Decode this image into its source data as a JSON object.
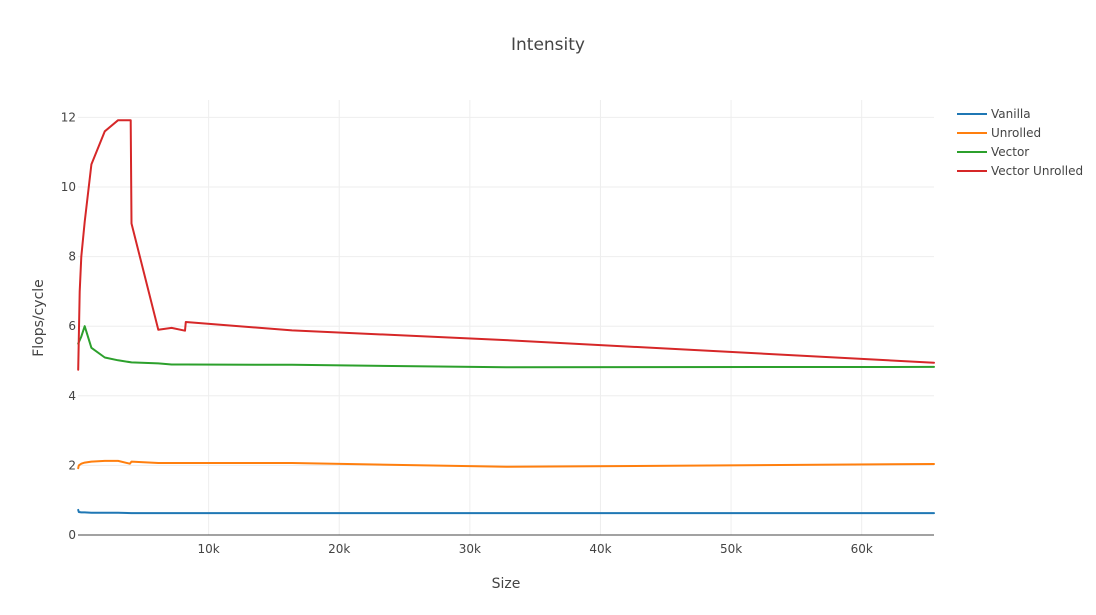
{
  "chart_data": {
    "type": "line",
    "title": "Intensity",
    "xlabel": "Size",
    "ylabel": "Flops/cycle",
    "xlim": [
      0,
      65536
    ],
    "ylim": [
      0,
      12.5
    ],
    "grid": true,
    "legend_position": "top-right",
    "x_ticks": [
      {
        "value": 10000,
        "label": "10k"
      },
      {
        "value": 20000,
        "label": "20k"
      },
      {
        "value": 30000,
        "label": "30k"
      },
      {
        "value": 40000,
        "label": "40k"
      },
      {
        "value": 50000,
        "label": "50k"
      },
      {
        "value": 60000,
        "label": "60k"
      }
    ],
    "y_ticks": [
      {
        "value": 0,
        "label": "0"
      },
      {
        "value": 2,
        "label": "2"
      },
      {
        "value": 4,
        "label": "4"
      },
      {
        "value": 6,
        "label": "6"
      },
      {
        "value": 8,
        "label": "8"
      },
      {
        "value": 10,
        "label": "10"
      },
      {
        "value": 12,
        "label": "12"
      }
    ],
    "series": [
      {
        "name": "Vanilla",
        "color": "#1f77b4",
        "x": [
          16,
          64,
          256,
          512,
          1024,
          2048,
          3072,
          4096,
          6144,
          8192,
          16384,
          32768,
          65536
        ],
        "y": [
          0.72,
          0.66,
          0.65,
          0.65,
          0.64,
          0.64,
          0.64,
          0.63,
          0.63,
          0.63,
          0.63,
          0.63,
          0.63
        ]
      },
      {
        "name": "Unrolled",
        "color": "#ff7f0e",
        "x": [
          16,
          64,
          256,
          512,
          1024,
          2048,
          3072,
          3968,
          4096,
          6144,
          8192,
          16384,
          32768,
          65536
        ],
        "y": [
          1.92,
          2.0,
          2.05,
          2.08,
          2.11,
          2.13,
          2.13,
          2.05,
          2.11,
          2.07,
          2.07,
          2.07,
          1.96,
          2.04
        ]
      },
      {
        "name": "Vector",
        "color": "#2ca02c",
        "x": [
          16,
          256,
          512,
          1024,
          2048,
          3072,
          4096,
          6144,
          7168,
          8192,
          16384,
          32768,
          65536
        ],
        "y": [
          5.5,
          5.7,
          6.0,
          5.38,
          5.1,
          5.02,
          4.96,
          4.93,
          4.9,
          4.9,
          4.89,
          4.82,
          4.83
        ]
      },
      {
        "name": "Vector Unrolled",
        "color": "#d62728",
        "x": [
          16,
          128,
          256,
          512,
          1024,
          2048,
          3072,
          4032,
          4096,
          6144,
          7168,
          8192,
          8256,
          16384,
          32768,
          65536
        ],
        "y": [
          4.75,
          7.0,
          8.0,
          9.0,
          10.65,
          11.6,
          11.92,
          11.92,
          8.95,
          5.9,
          5.95,
          5.87,
          6.12,
          5.88,
          5.6,
          4.95
        ]
      }
    ]
  }
}
